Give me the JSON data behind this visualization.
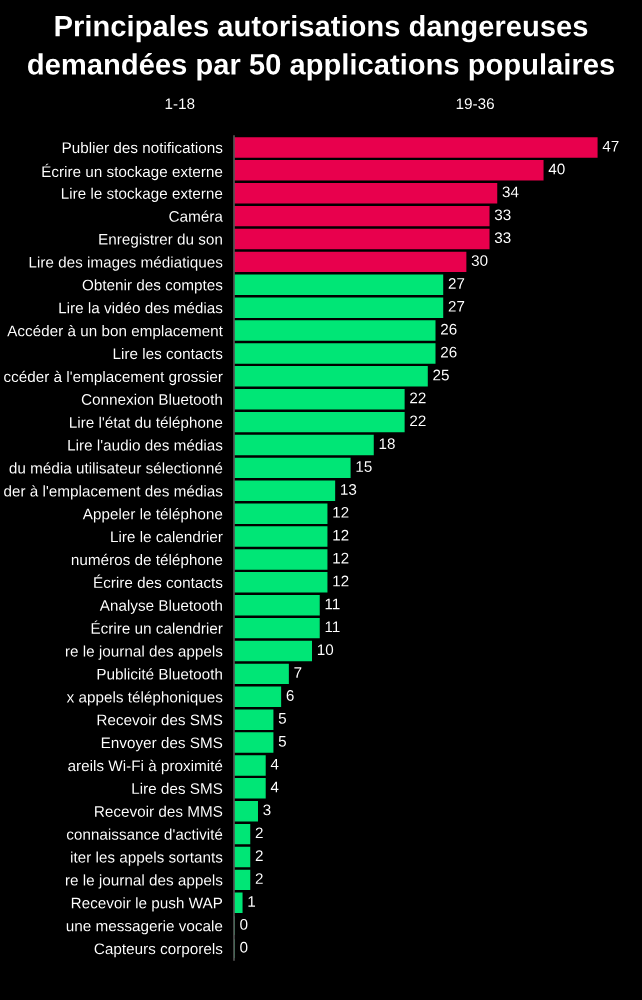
{
  "chart_data": {
    "type": "bar",
    "orientation": "horizontal",
    "title": "Principales autorisations dangereuses demandées par 50 applications populaires",
    "annotations": [
      "1-18",
      "19-36"
    ],
    "categories": [
      "Publier des notifications",
      "Écrire un stockage externe",
      "Lire le stockage externe",
      "Caméra",
      "Enregistrer du son",
      "Lire des images médiatiques",
      "Obtenir des comptes",
      "Lire la vidéo des médias",
      "Accéder à un bon emplacement",
      "Lire les contacts",
      "ccéder à l'emplacement grossier",
      "Connexion Bluetooth",
      "Lire l'état du téléphone",
      "Lire l'audio des médias",
      "du média utilisateur sélectionné",
      "der à l'emplacement des médias",
      "Appeler le téléphone",
      "Lire le calendrier",
      "numéros de téléphone",
      "Écrire des contacts",
      "Analyse Bluetooth",
      "Écrire un calendrier",
      "re le journal des appels",
      "Publicité Bluetooth",
      "x appels téléphoniques",
      "Recevoir des SMS",
      "Envoyer des SMS",
      "areils Wi-Fi à proximité",
      "Lire des SMS",
      "Recevoir des MMS",
      "connaissance d'activité",
      "iter les appels sortants",
      "re le journal des appels",
      "Recevoir le push WAP",
      "une messagerie vocale",
      "Capteurs corporels"
    ],
    "values": [
      47,
      40,
      34,
      33,
      33,
      30,
      27,
      27,
      26,
      26,
      25,
      22,
      22,
      18,
      15,
      13,
      12,
      12,
      12,
      12,
      11,
      11,
      10,
      7,
      6,
      5,
      5,
      4,
      4,
      3,
      2,
      2,
      2,
      1,
      0,
      0
    ],
    "colors": [
      "#e8004d",
      "#e8004d",
      "#e8004d",
      "#e8004d",
      "#e8004d",
      "#e8004d",
      "#00e676",
      "#00e676",
      "#00e676",
      "#00e676",
      "#00e676",
      "#00e676",
      "#00e676",
      "#00e676",
      "#00e676",
      "#00e676",
      "#00e676",
      "#00e676",
      "#00e676",
      "#00e676",
      "#00e676",
      "#00e676",
      "#00e676",
      "#00e676",
      "#00e676",
      "#00e676",
      "#00e676",
      "#00e676",
      "#00e676",
      "#00e676",
      "#00e676",
      "#00e676",
      "#00e676",
      "#00e676",
      "#00e676",
      "#00e676"
    ],
    "data_labels": true,
    "tick_labels": "y",
    "grid": false,
    "legend": false
  }
}
